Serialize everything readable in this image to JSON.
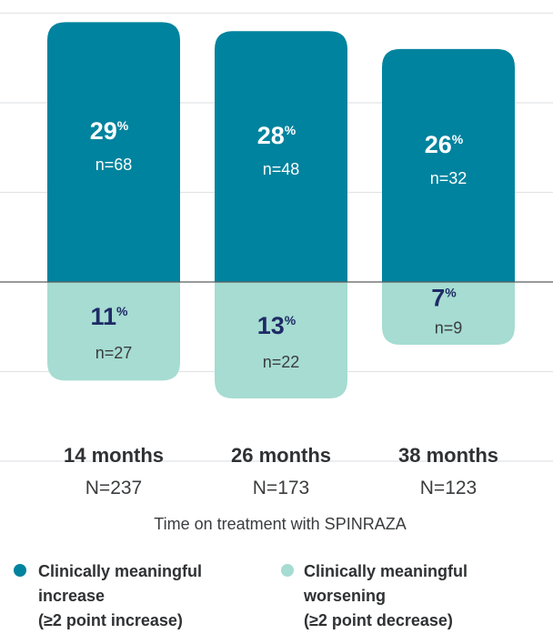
{
  "chart_data": {
    "type": "bar",
    "orientation": "diverging-stacked",
    "categories": [
      "14 months",
      "26 months",
      "38 months"
    ],
    "category_n": [
      "N=237",
      "N=173",
      "N=123"
    ],
    "xlabel": "Time on treatment with SPINRAZA",
    "ylabel": "",
    "ylim": [
      -20,
      40
    ],
    "grid": true,
    "legend_position": "bottom",
    "series": [
      {
        "name": "Clinically meaningful increase (≥2 point increase)",
        "legend_lines": [
          "Clinically meaningful",
          "increase",
          "(≥2 point increase)"
        ],
        "color": "#00839e",
        "direction": "up",
        "values": [
          29,
          28,
          26
        ],
        "counts": [
          "n=68",
          "n=48",
          "n=32"
        ]
      },
      {
        "name": "Clinically meaningful worsening (≥2 point decrease)",
        "legend_lines": [
          "Clinically meaningful",
          "worsening",
          "(≥2 point decrease)"
        ],
        "color": "#a6dcd2",
        "direction": "down",
        "values": [
          11,
          13,
          7
        ],
        "counts": [
          "n=27",
          "n=22",
          "n=9"
        ]
      }
    ],
    "value_suffix": "%"
  }
}
